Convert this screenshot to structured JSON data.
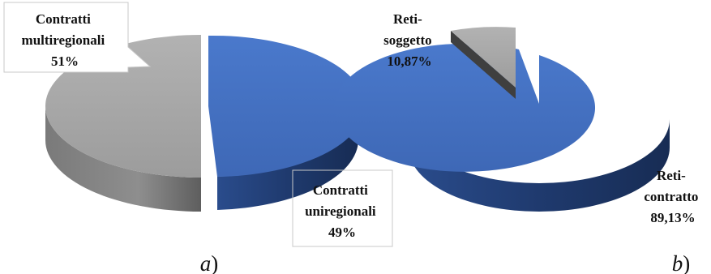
{
  "chart_data": [
    {
      "type": "pie",
      "panel_letter": "a",
      "panel_paren": ")",
      "colors": [
        "#4472C4",
        "#A6A6A6"
      ],
      "slices": [
        {
          "label_lines": [
            "Contratti",
            "uniregionali"
          ],
          "value_text": "49%",
          "value": 49
        },
        {
          "label_lines": [
            "Contratti",
            "multiregionali"
          ],
          "value_text": "51%",
          "value": 51
        }
      ]
    },
    {
      "type": "pie",
      "panel_letter": "b",
      "panel_paren": ")",
      "colors": [
        "#4472C4",
        "#A6A6A6"
      ],
      "slices": [
        {
          "label_lines": [
            "Reti-",
            "contratto"
          ],
          "value_text": "89,13%",
          "value": 89.13
        },
        {
          "label_lines": [
            "Reti-",
            "soggetto"
          ],
          "value_text": "10,87%",
          "value": 10.87
        }
      ]
    }
  ]
}
